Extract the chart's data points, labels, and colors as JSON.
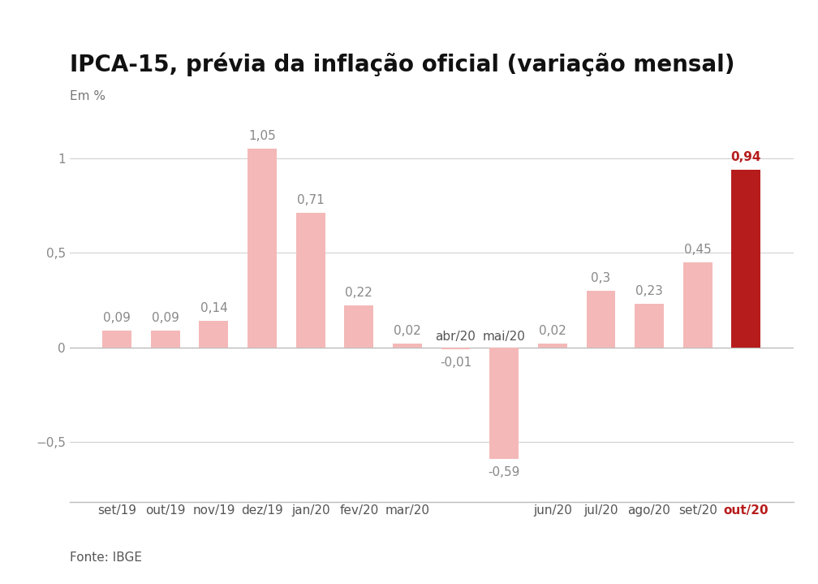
{
  "title": "IPCA-15, prévia da inflação oficial (variação mensal)",
  "em_label": "Em %",
  "source": "Fonte: IBGE",
  "categories": [
    "set/19",
    "out/19",
    "nov/19",
    "dez/19",
    "jan/20",
    "fev/20",
    "mar/20",
    "abr/20",
    "mai/20",
    "jun/20",
    "jul/20",
    "ago/20",
    "set/20",
    "out/20"
  ],
  "values": [
    0.09,
    0.09,
    0.14,
    1.05,
    0.71,
    0.22,
    0.02,
    -0.01,
    -0.59,
    0.02,
    0.3,
    0.23,
    0.45,
    0.94
  ],
  "value_labels": [
    "0,09",
    "0,09",
    "0,14",
    "1,05",
    "0,71",
    "0,22",
    "0,02",
    "-0,01",
    "-0,59",
    "0,02",
    "0,3",
    "0,23",
    "0,45",
    "0,94"
  ],
  "bar_colors": [
    "#f4b8b8",
    "#f4b8b8",
    "#f4b8b8",
    "#f4b8b8",
    "#f4b8b8",
    "#f4b8b8",
    "#f4b8b8",
    "#f4b8b8",
    "#f4b8b8",
    "#f4b8b8",
    "#f4b8b8",
    "#f4b8b8",
    "#f4b8b8",
    "#b71c1c"
  ],
  "highlight_index": 13,
  "ylim": [
    -0.82,
    1.22
  ],
  "yticks": [
    -0.5,
    0,
    0.5,
    1
  ],
  "ytick_labels": [
    "−0,5",
    "0",
    "0,5",
    "1"
  ],
  "background_color": "#ffffff",
  "title_fontsize": 20,
  "em_label_fontsize": 11,
  "value_fontsize": 11,
  "tick_fontsize": 11,
  "source_fontsize": 11,
  "grid_color": "#cccccc",
  "value_color_normal": "#888888",
  "value_color_highlight": "#b71c1c",
  "xtick_color_normal": "#555555",
  "xtick_color_highlight": "#b71c1c",
  "ytick_color": "#888888",
  "spine_color": "#bbbbbb",
  "above_zero_xticklabels": [
    7,
    8
  ]
}
